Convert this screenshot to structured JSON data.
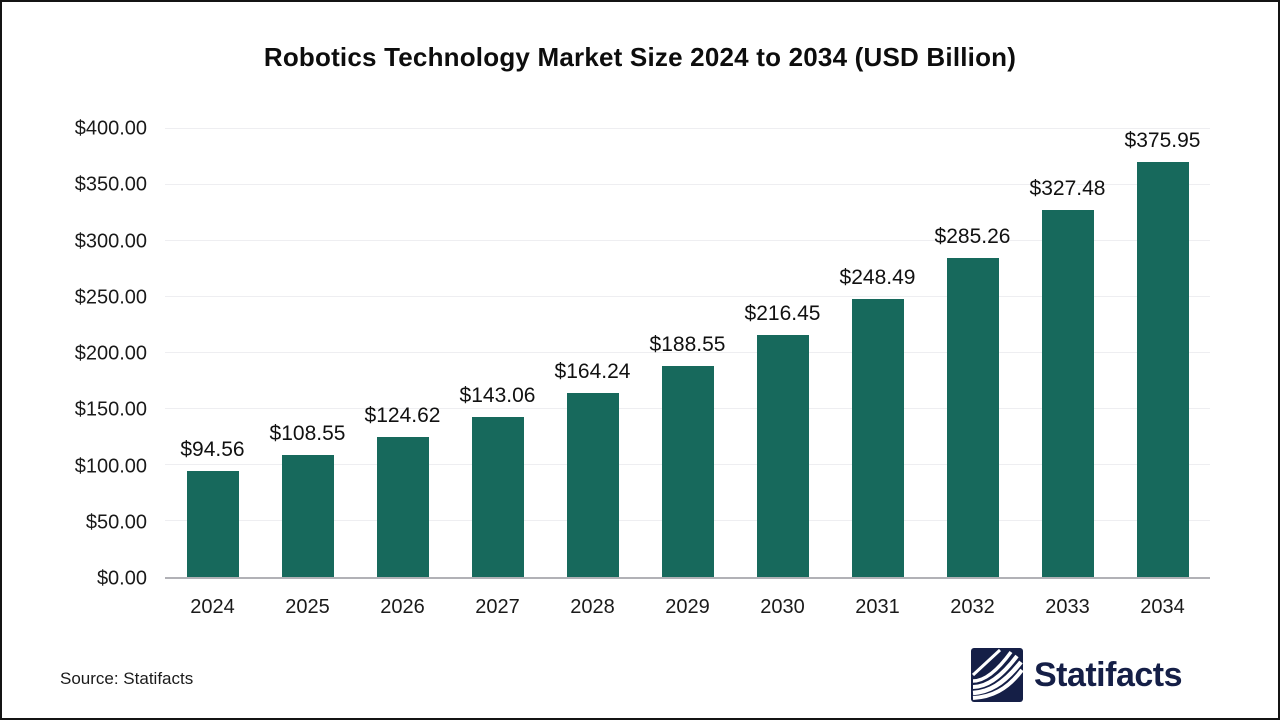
{
  "title": "Robotics Technology Market Size 2024 to 2034 (USD Billion)",
  "source": {
    "label": "Source: Statifacts"
  },
  "brand": {
    "name": "Statifacts",
    "icon": "statifacts-waves-icon",
    "color": "#151F47"
  },
  "colors": {
    "bar": "#17695C",
    "gridline": "#EEEEF1",
    "axis_line": "#B1B1B6",
    "text": "#1A1A1A",
    "logo_navy": "#151F47"
  },
  "chart_data": {
    "type": "bar",
    "title": "Robotics Technology Market Size 2024 to 2034 (USD Billion)",
    "unit": "USD Billion",
    "categories": [
      "2024",
      "2025",
      "2026",
      "2027",
      "2028",
      "2029",
      "2030",
      "2031",
      "2032",
      "2033",
      "2034"
    ],
    "values": [
      94.56,
      108.55,
      124.62,
      143.06,
      164.24,
      188.55,
      216.45,
      248.49,
      285.26,
      327.48,
      375.95
    ],
    "value_labels": [
      "$94.56",
      "$108.55",
      "$124.62",
      "$143.06",
      "$164.24",
      "$188.55",
      "$216.45",
      "$248.49",
      "$285.26",
      "$327.48",
      "$375.95"
    ],
    "xlabel": "",
    "ylabel": "",
    "ylim": [
      0,
      400
    ],
    "yticks": [
      {
        "value": 0,
        "label": "$0.00"
      },
      {
        "value": 50,
        "label": "$50.00"
      },
      {
        "value": 100,
        "label": "$100.00"
      },
      {
        "value": 150,
        "label": "$150.00"
      },
      {
        "value": 200,
        "label": "$200.00"
      },
      {
        "value": 250,
        "label": "$250.00"
      },
      {
        "value": 300,
        "label": "$300.00"
      },
      {
        "value": 350,
        "label": "$350.00"
      },
      {
        "value": 400,
        "label": "$400.00"
      }
    ],
    "grid": "horizontal",
    "legend": "none"
  }
}
